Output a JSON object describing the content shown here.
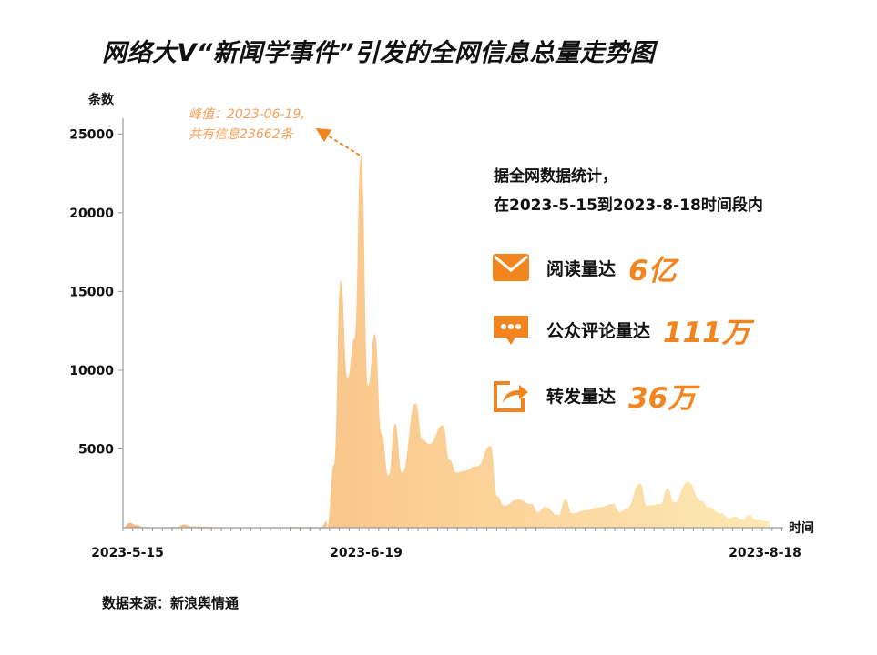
{
  "title": "网络大V“新闻学事件”引发的全网信息总量走势图",
  "stats": {
    "intro_line1": "据全网数据统计，",
    "intro_line2": "在2023-5-15到2023-8-18时间段内",
    "items": [
      {
        "label": "阅读量达",
        "value": "6亿",
        "icon": "envelope-icon"
      },
      {
        "label": "公众评论量达",
        "value": "111万",
        "icon": "comment-bubble-icon"
      },
      {
        "label": "转发量达",
        "value": "36万",
        "icon": "share-arrow-icon"
      }
    ]
  },
  "source": "数据来源：新浪舆情通",
  "colors": {
    "accent": "#f2851f",
    "area_left": "#f9b677",
    "area_right": "#fde9b4"
  },
  "chart_data": {
    "type": "area",
    "ylabel": "条数",
    "xlabel": "时间",
    "ylim": [
      0,
      26000
    ],
    "yticks": [
      5000,
      10000,
      15000,
      20000,
      25000
    ],
    "xtick_labels": [
      "2023-5-15",
      "2023-6-19",
      "2023-8-18"
    ],
    "xrange": [
      "2023-05-15",
      "2023-08-18"
    ],
    "annotation": {
      "line1": "峰值：2023-06-19,",
      "line2": "共有信息23662条",
      "x": "2023-06-19",
      "y": 23662
    },
    "points": [
      [
        "2023-05-15",
        0
      ],
      [
        "2023-05-16",
        300
      ],
      [
        "2023-05-17",
        150
      ],
      [
        "2023-05-18",
        50
      ],
      [
        "2023-05-20",
        20
      ],
      [
        "2023-05-23",
        50
      ],
      [
        "2023-05-24",
        200
      ],
      [
        "2023-05-25",
        80
      ],
      [
        "2023-05-30",
        30
      ],
      [
        "2023-06-05",
        30
      ],
      [
        "2023-06-10",
        40
      ],
      [
        "2023-06-13",
        30
      ],
      [
        "2023-06-14",
        400
      ],
      [
        "2023-06-14",
        0
      ],
      [
        "2023-06-15",
        4000
      ],
      [
        "2023-06-16",
        15700
      ],
      [
        "2023-06-17",
        9500
      ],
      [
        "2023-06-18",
        12000
      ],
      [
        "2023-06-19",
        23662
      ],
      [
        "2023-06-20",
        9000
      ],
      [
        "2023-06-21",
        12300
      ],
      [
        "2023-06-22",
        6000
      ],
      [
        "2023-06-23",
        3300
      ],
      [
        "2023-06-24",
        6600
      ],
      [
        "2023-06-25",
        3500
      ],
      [
        "2023-06-27",
        7900
      ],
      [
        "2023-06-28",
        5600
      ],
      [
        "2023-06-29",
        5300
      ],
      [
        "2023-07-01",
        6500
      ],
      [
        "2023-07-02",
        4300
      ],
      [
        "2023-07-03",
        3500
      ],
      [
        "2023-07-04",
        3600
      ],
      [
        "2023-07-06",
        3900
      ],
      [
        "2023-07-08",
        5200
      ],
      [
        "2023-07-09",
        2000
      ],
      [
        "2023-07-10",
        1400
      ],
      [
        "2023-07-12",
        1800
      ],
      [
        "2023-07-14",
        1500
      ],
      [
        "2023-07-15",
        1000
      ],
      [
        "2023-07-16",
        1300
      ],
      [
        "2023-07-18",
        800
      ],
      [
        "2023-07-19",
        1800
      ],
      [
        "2023-07-20",
        900
      ],
      [
        "2023-07-22",
        1100
      ],
      [
        "2023-07-24",
        1300
      ],
      [
        "2023-07-26",
        1500
      ],
      [
        "2023-07-27",
        1000
      ],
      [
        "2023-07-28",
        1200
      ],
      [
        "2023-07-30",
        2800
      ],
      [
        "2023-07-31",
        1400
      ],
      [
        "2023-08-02",
        1500
      ],
      [
        "2023-08-03",
        2500
      ],
      [
        "2023-08-04",
        1600
      ],
      [
        "2023-08-06",
        2900
      ],
      [
        "2023-08-08",
        1700
      ],
      [
        "2023-08-09",
        1300
      ],
      [
        "2023-08-11",
        900
      ],
      [
        "2023-08-12",
        600
      ],
      [
        "2023-08-13",
        700
      ],
      [
        "2023-08-14",
        500
      ],
      [
        "2023-08-15",
        800
      ],
      [
        "2023-08-16",
        500
      ],
      [
        "2023-08-18",
        400
      ]
    ]
  }
}
